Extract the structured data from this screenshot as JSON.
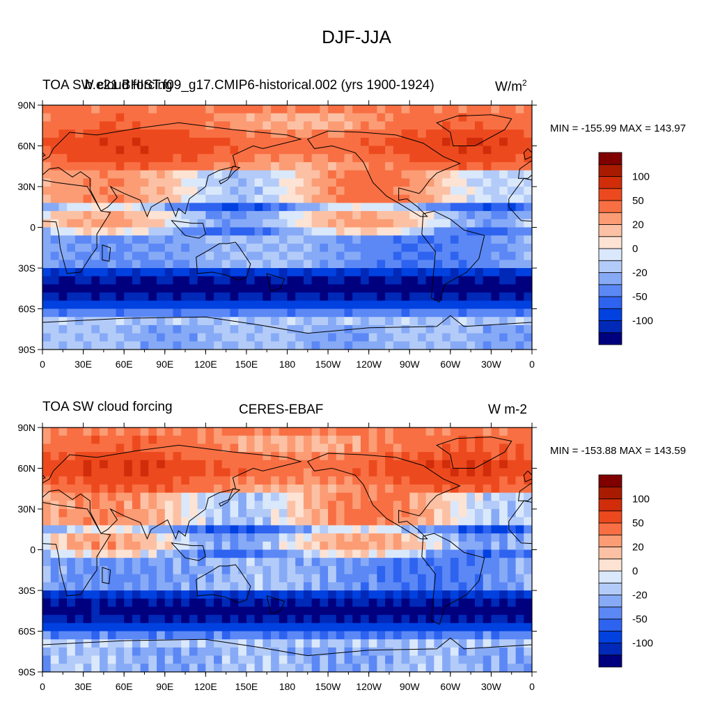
{
  "main_title": "DJF-JJA",
  "palette": [
    "#00007f",
    "#0029b8",
    "#0041e0",
    "#2e63f0",
    "#5b88f5",
    "#87aaf6",
    "#b3cbf8",
    "#dae8fb",
    "#fde3d4",
    "#fcc1a4",
    "#fb9c75",
    "#f86f43",
    "#ec4a1e",
    "#d12d0a",
    "#a81b00",
    "#800000"
  ],
  "colorbar_labels": [
    "100",
    "50",
    "20",
    "0",
    "-20",
    "-50",
    "-100"
  ],
  "chart_data": [
    {
      "type": "heatmap",
      "left_title": "TOA SW cloud forcing",
      "center_title": "b.e21.BHIST.f09_g17.CMIP6-historical.002 (yrs 1900-1924)",
      "units_base": "W/m",
      "units_exp": "2",
      "min_max": "MIN = -155.99 MAX = 143.97",
      "x_ticks": [
        "0",
        "30E",
        "60E",
        "90E",
        "120E",
        "150E",
        "180",
        "150W",
        "120W",
        "90W",
        "60W",
        "30W",
        "0"
      ],
      "y_ticks": [
        "90N",
        "60N",
        "30N",
        "0",
        "30S",
        "60S",
        "90S"
      ],
      "xlim": [
        0,
        360
      ],
      "ylim": [
        -90,
        90
      ],
      "value_range": [
        -155.99,
        143.97
      ]
    },
    {
      "type": "heatmap",
      "left_title": "TOA SW cloud forcing",
      "center_title": "CERES-EBAF",
      "units_base": "W m-2",
      "units_exp": "",
      "min_max": "MIN = -153.88 MAX = 143.59",
      "x_ticks": [
        "0",
        "30E",
        "60E",
        "90E",
        "120E",
        "150E",
        "180",
        "150W",
        "120W",
        "90W",
        "60W",
        "30W",
        "0"
      ],
      "y_ticks": [
        "90N",
        "60N",
        "30N",
        "0",
        "30S",
        "60S",
        "90S"
      ],
      "xlim": [
        0,
        360
      ],
      "ylim": [
        -90,
        90
      ],
      "value_range": [
        -153.88,
        143.59
      ]
    }
  ]
}
